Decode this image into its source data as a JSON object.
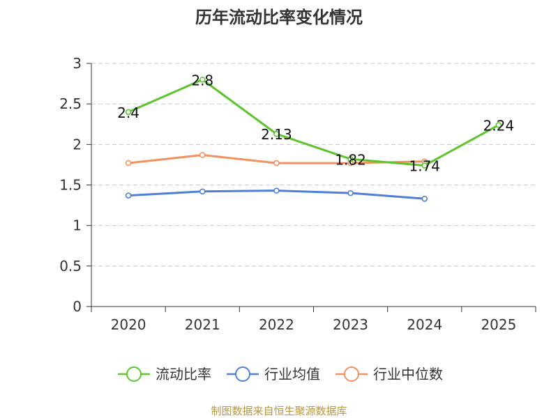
{
  "chart_data": {
    "type": "line",
    "title": "历年流动比率变化情况",
    "categories": [
      "2020",
      "2021",
      "2022",
      "2023",
      "2024",
      "2025"
    ],
    "ylim": [
      0,
      3
    ],
    "yticks": [
      "0",
      "0.5",
      "1",
      "1.5",
      "2",
      "2.5",
      "3"
    ],
    "grid": true,
    "legend_position": "bottom",
    "series": [
      {
        "name": "流动比率",
        "color": "#5cc52b",
        "values": [
          2.4,
          2.8,
          2.13,
          1.82,
          1.74,
          2.24
        ],
        "labels": [
          "2.4",
          "2.8",
          "2.13",
          "1.82",
          "1.74",
          "2.24"
        ]
      },
      {
        "name": "行业均值",
        "color": "#4e80d9",
        "values": [
          1.37,
          1.42,
          1.43,
          1.4,
          1.33,
          null
        ]
      },
      {
        "name": "行业中位数",
        "color": "#f39160",
        "values": [
          1.77,
          1.87,
          1.77,
          1.77,
          1.79,
          null
        ]
      }
    ],
    "source": "制图数据来自恒生聚源数据库"
  }
}
